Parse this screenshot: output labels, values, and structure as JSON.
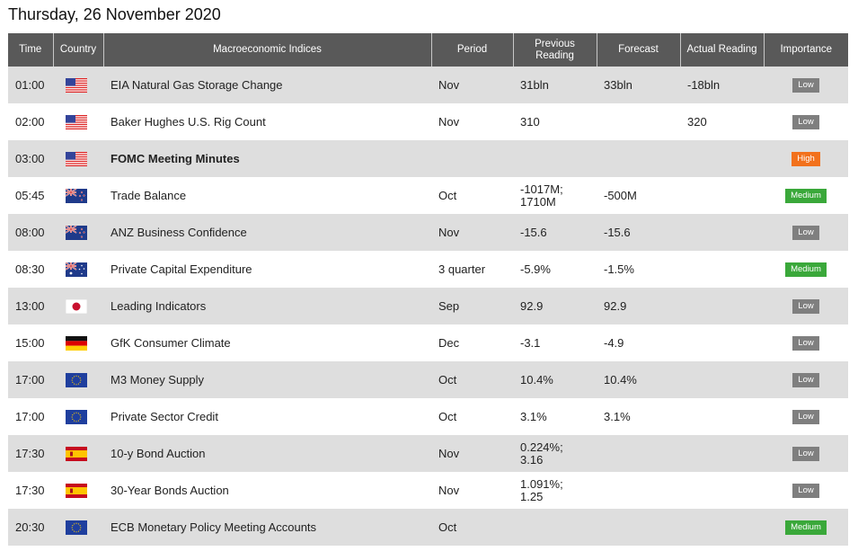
{
  "page": {
    "date_title": "Thursday, 26 November 2020"
  },
  "table": {
    "headers": {
      "time": "Time",
      "country": "Country",
      "indices": "Macroeconomic Indices",
      "period": "Period",
      "previous_line1": "Previous",
      "previous_line2": "Reading",
      "forecast": "Forecast",
      "actual": "Actual Reading",
      "importance": "Importance"
    },
    "rows": [
      {
        "time": "01:00",
        "flag": "us-flag-icon",
        "name": "EIA Natural Gas Storage Change",
        "bold": false,
        "period": "Nov",
        "previous": "31bln",
        "forecast": "33bln",
        "actual": "-18bln",
        "actual_negative": true,
        "importance": "Low"
      },
      {
        "time": "02:00",
        "flag": "us-flag-icon",
        "name": "Baker Hughes U.S. Rig Count",
        "bold": false,
        "period": "Nov",
        "previous": "310",
        "forecast": "",
        "actual": "320",
        "actual_negative": false,
        "importance": "Low"
      },
      {
        "time": "03:00",
        "flag": "us-flag-icon",
        "name": "FOMC Meeting Minutes",
        "bold": true,
        "period": "",
        "previous": "",
        "forecast": "",
        "actual": "",
        "actual_negative": false,
        "importance": "High"
      },
      {
        "time": "05:45",
        "flag": "nz-flag-icon",
        "name": "Trade Balance",
        "bold": false,
        "period": "Oct",
        "previous": "-1017M;\n1710M",
        "forecast": "-500M",
        "actual": "",
        "actual_negative": false,
        "importance": "Medium"
      },
      {
        "time": "08:00",
        "flag": "nz-flag-icon",
        "name": "ANZ Business Confidence",
        "bold": false,
        "period": "Nov",
        "previous": "-15.6",
        "forecast": "-15.6",
        "actual": "",
        "actual_negative": false,
        "importance": "Low"
      },
      {
        "time": "08:30",
        "flag": "au-flag-icon",
        "name": "Private Capital Expenditure",
        "bold": false,
        "period": "3 quarter",
        "previous": "-5.9%",
        "forecast": "-1.5%",
        "actual": "",
        "actual_negative": false,
        "importance": "Medium"
      },
      {
        "time": "13:00",
        "flag": "jp-flag-icon",
        "name": "Leading Indicators",
        "bold": false,
        "period": "Sep",
        "previous": "92.9",
        "forecast": "92.9",
        "actual": "",
        "actual_negative": false,
        "importance": "Low"
      },
      {
        "time": "15:00",
        "flag": "de-flag-icon",
        "name": "GfK Consumer Climate",
        "bold": false,
        "period": "Dec",
        "previous": "-3.1",
        "forecast": "-4.9",
        "actual": "",
        "actual_negative": false,
        "importance": "Low"
      },
      {
        "time": "17:00",
        "flag": "eu-flag-icon",
        "name": "M3 Money Supply",
        "bold": false,
        "period": "Oct",
        "previous": "10.4%",
        "forecast": "10.4%",
        "actual": "",
        "actual_negative": false,
        "importance": "Low"
      },
      {
        "time": "17:00",
        "flag": "eu-flag-icon",
        "name": "Private Sector Credit",
        "bold": false,
        "period": "Oct",
        "previous": "3.1%",
        "forecast": "3.1%",
        "actual": "",
        "actual_negative": false,
        "importance": "Low"
      },
      {
        "time": "17:30",
        "flag": "es-flag-icon",
        "name": "10-y Bond Auction",
        "bold": false,
        "period": "Nov",
        "previous": "0.224%;\n3.16",
        "forecast": "",
        "actual": "",
        "actual_negative": false,
        "importance": "Low"
      },
      {
        "time": "17:30",
        "flag": "es-flag-icon",
        "name": "30-Year Bonds Auction",
        "bold": false,
        "period": "Nov",
        "previous": "1.091%;\n1.25",
        "forecast": "",
        "actual": "",
        "actual_negative": false,
        "importance": "Low"
      },
      {
        "time": "20:30",
        "flag": "eu-flag-icon",
        "name": "ECB Monetary Policy Meeting Accounts",
        "bold": false,
        "period": "Oct",
        "previous": "",
        "forecast": "",
        "actual": "",
        "actual_negative": false,
        "importance": "Medium"
      }
    ]
  },
  "colors": {
    "header_bg": "#595959",
    "row_alt_bg": "#dedede",
    "negative": "#e02020",
    "importance_low": "#7f7f7f",
    "importance_medium": "#3aa83a",
    "importance_high": "#f2711c"
  }
}
